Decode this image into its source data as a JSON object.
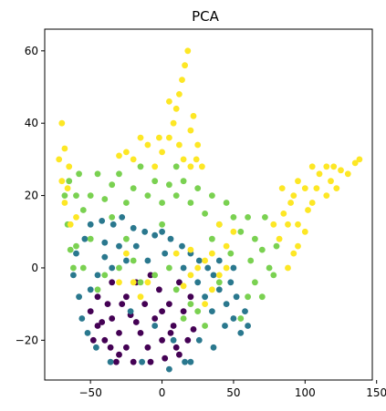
{
  "chart_data": {
    "type": "scatter",
    "title": "PCA",
    "xlabel": "",
    "ylabel": "",
    "xlim": [
      -82,
      147
    ],
    "ylim": [
      -31,
      66
    ],
    "x_ticks": [
      -50,
      0,
      50,
      100,
      150
    ],
    "y_ticks": [
      -20,
      0,
      20,
      40,
      60
    ],
    "x_tick_labels": [
      "−50",
      "0",
      "50",
      "100",
      "150"
    ],
    "y_tick_labels": [
      "−20",
      "0",
      "20",
      "40",
      "60"
    ],
    "grid": false,
    "legend": "none",
    "colormap": "viridis",
    "series_colors": [
      "#440154",
      "#2a788e",
      "#7ad151",
      "#fde725"
    ],
    "series": [
      {
        "color": "#440154",
        "points": [
          [
            -50,
            -12
          ],
          [
            -45,
            -8
          ],
          [
            -45,
            -16
          ],
          [
            -40,
            -20
          ],
          [
            -38,
            -10
          ],
          [
            -35,
            -4
          ],
          [
            -35,
            -14
          ],
          [
            -30,
            -18
          ],
          [
            -30,
            -24
          ],
          [
            -25,
            -8
          ],
          [
            -25,
            -22
          ],
          [
            -22,
            -13
          ],
          [
            -20,
            -26
          ],
          [
            -18,
            -4
          ],
          [
            -15,
            -18
          ],
          [
            -12,
            -10
          ],
          [
            -10,
            -22
          ],
          [
            -8,
            -26
          ],
          [
            -5,
            -14
          ],
          [
            -2,
            -6
          ],
          [
            0,
            -20
          ],
          [
            2,
            -25
          ],
          [
            5,
            -10
          ],
          [
            8,
            -16
          ],
          [
            10,
            -22
          ],
          [
            12,
            -4
          ],
          [
            15,
            -12
          ],
          [
            18,
            -20
          ],
          [
            20,
            -8
          ],
          [
            22,
            -17
          ],
          [
            -28,
            -10
          ],
          [
            -42,
            -15
          ],
          [
            -8,
            -2
          ],
          [
            0,
            -12
          ],
          [
            -32,
            -26
          ],
          [
            6,
            -18
          ],
          [
            -18,
            -15
          ],
          [
            -36,
            -22
          ],
          [
            12,
            -24
          ],
          [
            -48,
            -20
          ]
        ]
      },
      {
        "color": "#2a788e",
        "points": [
          [
            -62,
            -2
          ],
          [
            -60,
            4
          ],
          [
            -58,
            -8
          ],
          [
            -56,
            -14
          ],
          [
            -54,
            8
          ],
          [
            -52,
            -18
          ],
          [
            -50,
            12
          ],
          [
            -46,
            -22
          ],
          [
            -42,
            13
          ],
          [
            -36,
            -26
          ],
          [
            -34,
            12
          ],
          [
            -28,
            14
          ],
          [
            -20,
            11
          ],
          [
            -12,
            10
          ],
          [
            -5,
            9
          ],
          [
            0,
            10
          ],
          [
            6,
            8
          ],
          [
            14,
            6
          ],
          [
            20,
            4
          ],
          [
            26,
            2
          ],
          [
            32,
            0
          ],
          [
            36,
            -2
          ],
          [
            40,
            -6
          ],
          [
            45,
            -10
          ],
          [
            48,
            -4
          ],
          [
            50,
            -14
          ],
          [
            52,
            -8
          ],
          [
            55,
            -18
          ],
          [
            58,
            -12
          ],
          [
            60,
            -16
          ],
          [
            36,
            -22
          ],
          [
            26,
            -20
          ],
          [
            16,
            -26
          ],
          [
            5,
            -28
          ],
          [
            -40,
            3
          ],
          [
            -30,
            6
          ],
          [
            -25,
            2
          ],
          [
            -22,
            -12
          ],
          [
            -14,
            -26
          ],
          [
            -5,
            -16
          ],
          [
            8,
            -20
          ],
          [
            20,
            -26
          ],
          [
            -10,
            2
          ],
          [
            2,
            4
          ],
          [
            30,
            -8
          ],
          [
            44,
            -16
          ],
          [
            -45,
            -2
          ],
          [
            -50,
            -6
          ],
          [
            -35,
            0
          ],
          [
            -18,
            6
          ],
          [
            -40,
            7
          ],
          [
            15,
            0
          ],
          [
            25,
            -4
          ],
          [
            35,
            -12
          ],
          [
            50,
            0
          ],
          [
            40,
            2
          ]
        ]
      },
      {
        "color": "#7ad151",
        "points": [
          [
            -68,
            20
          ],
          [
            -66,
            12
          ],
          [
            -64,
            5
          ],
          [
            -62,
            0
          ],
          [
            -60,
            20
          ],
          [
            -58,
            26
          ],
          [
            -55,
            16
          ],
          [
            -50,
            20
          ],
          [
            -45,
            26
          ],
          [
            -40,
            19
          ],
          [
            -35,
            23
          ],
          [
            -30,
            26
          ],
          [
            -25,
            18
          ],
          [
            -20,
            22
          ],
          [
            -15,
            28
          ],
          [
            -10,
            20
          ],
          [
            -5,
            24
          ],
          [
            0,
            18
          ],
          [
            5,
            23
          ],
          [
            10,
            20
          ],
          [
            15,
            24
          ],
          [
            20,
            18
          ],
          [
            25,
            22
          ],
          [
            30,
            15
          ],
          [
            35,
            20
          ],
          [
            40,
            12
          ],
          [
            45,
            18
          ],
          [
            50,
            14
          ],
          [
            55,
            10
          ],
          [
            60,
            14
          ],
          [
            65,
            8
          ],
          [
            70,
            5
          ],
          [
            72,
            14
          ],
          [
            75,
            0
          ],
          [
            78,
            -2
          ],
          [
            80,
            6
          ],
          [
            70,
            -8
          ],
          [
            65,
            -4
          ],
          [
            60,
            -8
          ],
          [
            55,
            -14
          ],
          [
            -45,
            -6
          ],
          [
            -40,
            -2
          ],
          [
            -30,
            0
          ],
          [
            -20,
            2
          ],
          [
            -15,
            -4
          ],
          [
            -5,
            -2
          ],
          [
            5,
            0
          ],
          [
            10,
            -6
          ],
          [
            20,
            -10
          ],
          [
            25,
            -12
          ],
          [
            30,
            -16
          ],
          [
            -35,
            14
          ],
          [
            -55,
            0
          ],
          [
            -60,
            6
          ],
          [
            0,
            12
          ],
          [
            40,
            -4
          ],
          [
            -25,
            8
          ],
          [
            62,
            2
          ],
          [
            48,
            4
          ],
          [
            -65,
            24
          ],
          [
            35,
            8
          ],
          [
            10,
            28
          ],
          [
            -50,
            8
          ],
          [
            15,
            -14
          ]
        ]
      },
      {
        "color": "#fde725",
        "points": [
          [
            -72,
            30
          ],
          [
            -70,
            40
          ],
          [
            -70,
            24
          ],
          [
            -68,
            33
          ],
          [
            -66,
            22
          ],
          [
            -65,
            28
          ],
          [
            -68,
            18
          ],
          [
            -64,
            12
          ],
          [
            -5,
            28
          ],
          [
            0,
            32
          ],
          [
            5,
            36
          ],
          [
            8,
            40
          ],
          [
            10,
            44
          ],
          [
            12,
            48
          ],
          [
            14,
            52
          ],
          [
            16,
            56
          ],
          [
            18,
            60
          ],
          [
            20,
            38
          ],
          [
            22,
            42
          ],
          [
            24,
            30
          ],
          [
            25,
            34
          ],
          [
            28,
            28
          ],
          [
            -10,
            34
          ],
          [
            -15,
            36
          ],
          [
            -20,
            30
          ],
          [
            -25,
            32
          ],
          [
            -30,
            31
          ],
          [
            -2,
            36
          ],
          [
            15,
            30
          ],
          [
            20,
            28
          ],
          [
            5,
            46
          ],
          [
            12,
            34
          ],
          [
            82,
            8
          ],
          [
            85,
            15
          ],
          [
            88,
            0
          ],
          [
            90,
            18
          ],
          [
            92,
            20
          ],
          [
            95,
            24
          ],
          [
            100,
            22
          ],
          [
            105,
            28
          ],
          [
            110,
            26
          ],
          [
            115,
            20
          ],
          [
            118,
            24
          ],
          [
            122,
            22
          ],
          [
            125,
            27
          ],
          [
            130,
            26
          ],
          [
            135,
            29
          ],
          [
            138,
            30
          ],
          [
            95,
            12
          ],
          [
            100,
            10
          ],
          [
            88,
            12
          ],
          [
            92,
            4
          ],
          [
            105,
            18
          ],
          [
            115,
            28
          ],
          [
            84,
            22
          ],
          [
            78,
            12
          ],
          [
            40,
            12
          ],
          [
            45,
            6
          ],
          [
            50,
            10
          ],
          [
            30,
            2
          ],
          [
            35,
            4
          ],
          [
            25,
            0
          ],
          [
            20,
            5
          ],
          [
            15,
            -5
          ],
          [
            20,
            -2
          ],
          [
            30,
            -10
          ],
          [
            35,
            -6
          ],
          [
            -20,
            -4
          ],
          [
            -15,
            -8
          ],
          [
            -10,
            -4
          ],
          [
            -25,
            4
          ],
          [
            -30,
            -4
          ],
          [
            10,
            4
          ],
          [
            40,
            -2
          ],
          [
            45,
            0
          ],
          [
            -60,
            14
          ],
          [
            95,
            6
          ],
          [
            102,
            16
          ],
          [
            108,
            22
          ],
          [
            120,
            28
          ]
        ]
      }
    ]
  }
}
